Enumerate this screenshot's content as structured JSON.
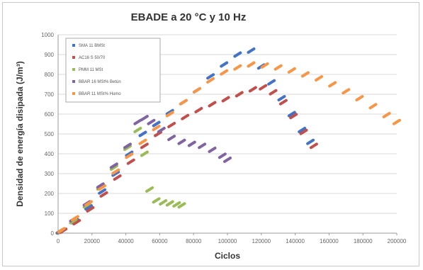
{
  "chart_data": {
    "type": "scatter",
    "title": "EBADE a 20 °C y 10 Hz",
    "xlabel": "Ciclos",
    "ylabel": "Densidad de energía disipada (J/m³)",
    "xlim": [
      0,
      200000
    ],
    "ylim": [
      0,
      1000
    ],
    "x_ticks": [
      "0",
      "20000",
      "40000",
      "60000",
      "80000",
      "100000",
      "120000",
      "140000",
      "160000",
      "180000",
      "200000"
    ],
    "y_ticks": [
      "0",
      "100",
      "200",
      "300",
      "400",
      "500",
      "600",
      "700",
      "800",
      "900",
      "1000"
    ],
    "grid": "horizontal",
    "legend_position": "top-left",
    "series": [
      {
        "name": "SMA 11 BMSt",
        "color": "#4472c4",
        "points": [
          [
            2000,
            10
          ],
          [
            10000,
            60
          ],
          [
            18000,
            130
          ],
          [
            26000,
            210
          ],
          [
            34000,
            300
          ],
          [
            42000,
            400
          ],
          [
            50000,
            500
          ],
          [
            58000,
            550
          ],
          [
            66000,
            610
          ],
          [
            74000,
            660
          ],
          [
            82000,
            720
          ],
          [
            90000,
            790
          ],
          [
            98000,
            850
          ],
          [
            106000,
            900
          ],
          [
            114000,
            920
          ],
          [
            120000,
            840
          ],
          [
            126000,
            760
          ],
          [
            132000,
            680
          ],
          [
            138000,
            600
          ],
          [
            144000,
            520
          ],
          [
            149000,
            460
          ]
        ]
      },
      {
        "name": "AC16 S 50/70",
        "color": "#c0504d",
        "points": [
          [
            3000,
            12
          ],
          [
            11000,
            55
          ],
          [
            19000,
            120
          ],
          [
            27000,
            195
          ],
          [
            35000,
            280
          ],
          [
            43000,
            360
          ],
          [
            51000,
            440
          ],
          [
            59000,
            500
          ],
          [
            67000,
            545
          ],
          [
            75000,
            585
          ],
          [
            83000,
            620
          ],
          [
            91000,
            650
          ],
          [
            99000,
            675
          ],
          [
            107000,
            700
          ],
          [
            115000,
            725
          ],
          [
            121000,
            735
          ],
          [
            127000,
            710
          ],
          [
            133000,
            660
          ],
          [
            139000,
            590
          ],
          [
            145000,
            510
          ],
          [
            151000,
            440
          ]
        ]
      },
      {
        "name": "PMM 11 MSt",
        "color": "#9bbb59",
        "points": [
          [
            1000,
            8
          ],
          [
            9000,
            60
          ],
          [
            17000,
            140
          ],
          [
            25000,
            230
          ],
          [
            33000,
            330
          ],
          [
            41000,
            430
          ],
          [
            47000,
            520
          ],
          [
            51000,
            400
          ],
          [
            54000,
            220
          ],
          [
            58000,
            165
          ],
          [
            62000,
            155
          ],
          [
            66000,
            150
          ],
          [
            70000,
            145
          ],
          [
            73000,
            140
          ]
        ]
      },
      {
        "name": "BBAR 16 MSt% Betún",
        "color": "#8064a2",
        "points": [
          [
            1000,
            10
          ],
          [
            9000,
            70
          ],
          [
            17000,
            150
          ],
          [
            25000,
            240
          ],
          [
            33000,
            340
          ],
          [
            41000,
            440
          ],
          [
            47000,
            560
          ],
          [
            51000,
            580
          ],
          [
            55000,
            560
          ],
          [
            61000,
            520
          ],
          [
            67000,
            480
          ],
          [
            73000,
            460
          ],
          [
            79000,
            450
          ],
          [
            85000,
            440
          ],
          [
            91000,
            420
          ],
          [
            97000,
            390
          ],
          [
            100000,
            370
          ]
        ]
      },
      {
        "name": "BBAR 11 MSt% Humo",
        "color": "#f79646",
        "points": [
          [
            2000,
            15
          ],
          [
            10000,
            75
          ],
          [
            18000,
            150
          ],
          [
            26000,
            230
          ],
          [
            34000,
            310
          ],
          [
            42000,
            390
          ],
          [
            50000,
            460
          ],
          [
            58000,
            530
          ],
          [
            66000,
            600
          ],
          [
            74000,
            660
          ],
          [
            82000,
            720
          ],
          [
            90000,
            770
          ],
          [
            98000,
            810
          ],
          [
            106000,
            835
          ],
          [
            114000,
            850
          ],
          [
            122000,
            845
          ],
          [
            130000,
            835
          ],
          [
            138000,
            820
          ],
          [
            146000,
            800
          ],
          [
            154000,
            780
          ],
          [
            162000,
            750
          ],
          [
            170000,
            715
          ],
          [
            178000,
            680
          ],
          [
            186000,
            640
          ],
          [
            194000,
            595
          ],
          [
            200000,
            560
          ]
        ]
      }
    ]
  }
}
